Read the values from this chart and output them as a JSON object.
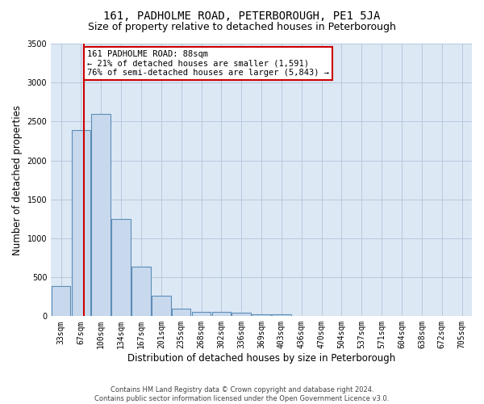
{
  "title": "161, PADHOLME ROAD, PETERBOROUGH, PE1 5JA",
  "subtitle": "Size of property relative to detached houses in Peterborough",
  "xlabel": "Distribution of detached houses by size in Peterborough",
  "ylabel": "Number of detached properties",
  "footer_line1": "Contains HM Land Registry data © Crown copyright and database right 2024.",
  "footer_line2": "Contains public sector information licensed under the Open Government Licence v3.0.",
  "bar_labels": [
    "33sqm",
    "67sqm",
    "100sqm",
    "134sqm",
    "167sqm",
    "201sqm",
    "235sqm",
    "268sqm",
    "302sqm",
    "336sqm",
    "369sqm",
    "403sqm",
    "436sqm",
    "470sqm",
    "504sqm",
    "537sqm",
    "571sqm",
    "604sqm",
    "638sqm",
    "672sqm",
    "705sqm"
  ],
  "bar_values": [
    390,
    2390,
    2600,
    1250,
    640,
    260,
    95,
    60,
    55,
    40,
    25,
    20,
    0,
    0,
    0,
    0,
    0,
    0,
    0,
    0,
    0
  ],
  "bar_color": "#c9d9ed",
  "bar_edge_color": "#5b8db8",
  "annotation_text": "161 PADHOLME ROAD: 88sqm\n← 21% of detached houses are smaller (1,591)\n76% of semi-detached houses are larger (5,843) →",
  "vline_x": 1.15,
  "vline_color": "#cc0000",
  "annotation_box_color": "#ffffff",
  "annotation_box_edge": "#cc0000",
  "ylim": [
    0,
    3500
  ],
  "background_color": "#ffffff",
  "plot_bg_color": "#dde8f5",
  "grid_color": "#b8c8dc",
  "title_fontsize": 10,
  "subtitle_fontsize": 9,
  "axis_label_fontsize": 8.5,
  "tick_fontsize": 7,
  "annotation_fontsize": 7.5
}
